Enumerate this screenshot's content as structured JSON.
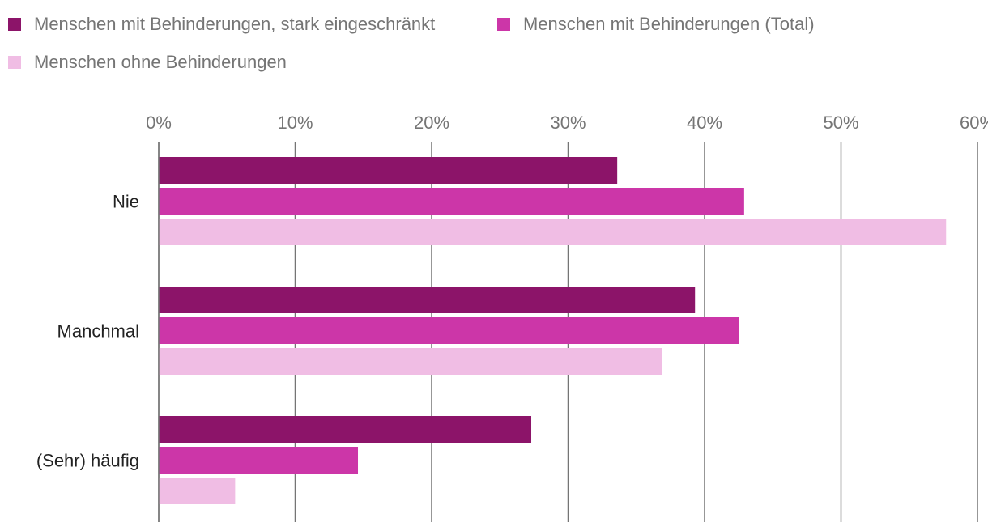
{
  "chart_data": {
    "type": "bar",
    "orientation": "horizontal",
    "title": "",
    "xlabel": "",
    "ylabel": "",
    "xlim": [
      0,
      60
    ],
    "x_ticks": [
      0,
      10,
      20,
      30,
      40,
      50,
      60
    ],
    "x_tick_suffix": "%",
    "grid": true,
    "legend_position": "top-left",
    "categories": [
      "Nie",
      "Manchmal",
      "(Sehr) häufig"
    ],
    "series": [
      {
        "name": "Menschen mit Behinderungen, stark eingeschränkt",
        "color": "#8c1469",
        "values": [
          33.6,
          39.3,
          27.3
        ]
      },
      {
        "name": "Menschen mit Behinderungen (Total)",
        "color": "#cc36a8",
        "values": [
          42.9,
          42.5,
          14.6
        ]
      },
      {
        "name": "Menschen ohne Behinderungen",
        "color": "#f0bde4",
        "values": [
          57.7,
          36.9,
          5.6
        ]
      }
    ]
  }
}
